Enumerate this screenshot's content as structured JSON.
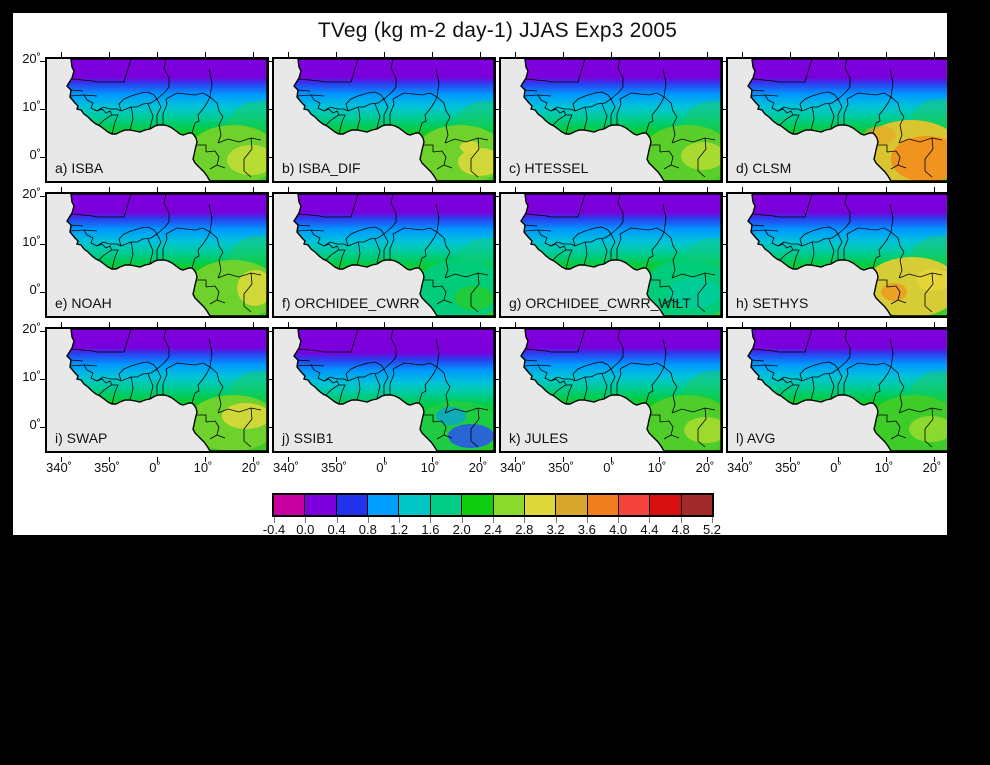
{
  "title": "TVeg (kg m-2 day-1) JJAS Exp3 2005",
  "axes": {
    "lat_ticks": [
      "20˚",
      "10˚",
      "0˚"
    ],
    "lon_ticks": [
      "340˚",
      "350˚",
      "0˚",
      "10˚",
      "20˚"
    ]
  },
  "colors": {
    "background": "#000000",
    "canvas": "#ffffff",
    "ocean": "#e8e8e8",
    "coast": "#000000",
    "border": "#000000"
  },
  "panels": [
    {
      "id": "a",
      "label": "a) ISBA",
      "stops": [
        [
          0,
          "#8000DF"
        ],
        [
          0.15,
          "#7A00DB"
        ],
        [
          0.2,
          "#2C3CEE"
        ],
        [
          0.29,
          "#0098FF"
        ],
        [
          0.39,
          "#00C3D8"
        ],
        [
          0.47,
          "#00CCA0"
        ],
        [
          0.55,
          "#00CC5A"
        ],
        [
          0.63,
          "#14CC14"
        ],
        [
          0.8,
          "#27CC1E"
        ],
        [
          1,
          "#3FCC28"
        ]
      ],
      "blobs": [
        [
          213,
          64,
          30,
          22,
          "#1ECC55",
          0.45
        ],
        [
          186,
          96,
          46,
          30,
          "#6FD12C",
          1
        ],
        [
          204,
          101,
          24,
          15,
          "#B9DC35",
          1
        ]
      ]
    },
    {
      "id": "b",
      "label": "b) ISBA_DIF",
      "stops": [
        [
          0,
          "#8000DF"
        ],
        [
          0.15,
          "#7A00DB"
        ],
        [
          0.2,
          "#2C3CEE"
        ],
        [
          0.29,
          "#0098FF"
        ],
        [
          0.39,
          "#00C3D8"
        ],
        [
          0.47,
          "#00CCA0"
        ],
        [
          0.55,
          "#00CC5A"
        ],
        [
          0.63,
          "#14CC14"
        ],
        [
          0.8,
          "#27CC1E"
        ],
        [
          1,
          "#3FCC28"
        ]
      ],
      "blobs": [
        [
          213,
          64,
          30,
          22,
          "#1ECC55",
          0.45
        ],
        [
          186,
          96,
          46,
          30,
          "#6FD12C",
          1
        ],
        [
          206,
          103,
          22,
          14,
          "#CFD838",
          1
        ],
        [
          196,
          88,
          10,
          6,
          "#DED73A",
          0.9
        ]
      ]
    },
    {
      "id": "c",
      "label": "c) HTESSEL",
      "stops": [
        [
          0,
          "#8000DF"
        ],
        [
          0.15,
          "#7A00DB"
        ],
        [
          0.2,
          "#2C3CEE"
        ],
        [
          0.29,
          "#0098FF"
        ],
        [
          0.39,
          "#00C3D8"
        ],
        [
          0.47,
          "#00CCA0"
        ],
        [
          0.55,
          "#00CC5A"
        ],
        [
          0.63,
          "#14CC14"
        ],
        [
          0.8,
          "#27CC1E"
        ],
        [
          1,
          "#3FCC28"
        ]
      ],
      "blobs": [
        [
          213,
          64,
          30,
          22,
          "#1ECC55",
          0.45
        ],
        [
          186,
          96,
          46,
          30,
          "#5ACF2C",
          1
        ],
        [
          202,
          97,
          22,
          14,
          "#A8DA31",
          1
        ]
      ]
    },
    {
      "id": "d",
      "label": "d) CLSM",
      "stops": [
        [
          0,
          "#8000DF"
        ],
        [
          0.15,
          "#7A00DB"
        ],
        [
          0.2,
          "#2C3CEE"
        ],
        [
          0.29,
          "#0098FF"
        ],
        [
          0.39,
          "#00C3D8"
        ],
        [
          0.47,
          "#00CCA0"
        ],
        [
          0.55,
          "#00CC5A"
        ],
        [
          0.63,
          "#14CC14"
        ],
        [
          0.8,
          "#27CC1E"
        ],
        [
          1,
          "#3FCC28"
        ]
      ],
      "blobs": [
        [
          213,
          62,
          30,
          22,
          "#1ECC55",
          0.45
        ],
        [
          183,
          94,
          52,
          33,
          "#D9C52F",
          1
        ],
        [
          199,
          100,
          36,
          23,
          "#F0931F",
          1
        ],
        [
          152,
          76,
          16,
          9,
          "#E8A428",
          0.6
        ]
      ]
    },
    {
      "id": "e",
      "label": "e) NOAH",
      "stops": [
        [
          0,
          "#8000DF"
        ],
        [
          0.15,
          "#7A00DB"
        ],
        [
          0.2,
          "#2C3CEE"
        ],
        [
          0.29,
          "#0098FF"
        ],
        [
          0.39,
          "#00C3D8"
        ],
        [
          0.47,
          "#00CCA0"
        ],
        [
          0.55,
          "#00CC5A"
        ],
        [
          0.63,
          "#14CC14"
        ],
        [
          0.8,
          "#27CC1E"
        ],
        [
          1,
          "#3FCC28"
        ]
      ],
      "blobs": [
        [
          213,
          64,
          30,
          22,
          "#1ECC55",
          0.45
        ],
        [
          186,
          96,
          46,
          30,
          "#6FD12C",
          1
        ],
        [
          208,
          94,
          18,
          18,
          "#CFD838",
          1
        ]
      ]
    },
    {
      "id": "f",
      "label": "f) ORCHIDEE_CWRR",
      "stops": [
        [
          0,
          "#8000DF"
        ],
        [
          0.15,
          "#7A00DB"
        ],
        [
          0.2,
          "#2C3CEE"
        ],
        [
          0.29,
          "#0098FF"
        ],
        [
          0.39,
          "#00C3D8"
        ],
        [
          0.47,
          "#00CCA0"
        ],
        [
          0.55,
          "#00CC5A"
        ],
        [
          0.63,
          "#14CC14"
        ],
        [
          0.8,
          "#27CC1E"
        ],
        [
          1,
          "#3FCC28"
        ]
      ],
      "blobs": [
        [
          213,
          64,
          28,
          20,
          "#10CC80",
          0.5
        ],
        [
          186,
          96,
          46,
          30,
          "#00CC7A",
          1
        ],
        [
          200,
          104,
          20,
          12,
          "#1ECC3C",
          1
        ]
      ]
    },
    {
      "id": "g",
      "label": "g) ORCHIDEE_CWRR_WILT",
      "stops": [
        [
          0,
          "#8000DF"
        ],
        [
          0.15,
          "#7A00DB"
        ],
        [
          0.2,
          "#2C3CEE"
        ],
        [
          0.29,
          "#0098FF"
        ],
        [
          0.39,
          "#00C3D8"
        ],
        [
          0.47,
          "#00CCA0"
        ],
        [
          0.55,
          "#00CC5A"
        ],
        [
          0.63,
          "#14CC14"
        ],
        [
          0.8,
          "#27CC1E"
        ],
        [
          1,
          "#3FCC28"
        ]
      ],
      "blobs": [
        [
          213,
          64,
          28,
          20,
          "#10CC80",
          0.5
        ],
        [
          186,
          96,
          46,
          30,
          "#00CC7A",
          1
        ],
        [
          193,
          99,
          26,
          15,
          "#00CC9A",
          1
        ]
      ]
    },
    {
      "id": "h",
      "label": "h) SETHYS",
      "stops": [
        [
          0,
          "#8000DF"
        ],
        [
          0.15,
          "#7A00DB"
        ],
        [
          0.2,
          "#2C3CEE"
        ],
        [
          0.29,
          "#0098FF"
        ],
        [
          0.39,
          "#00C3D8"
        ],
        [
          0.47,
          "#00CCA0"
        ],
        [
          0.55,
          "#00CC5A"
        ],
        [
          0.63,
          "#14CC14"
        ],
        [
          0.8,
          "#27CC1E"
        ],
        [
          1,
          "#3FCC28"
        ]
      ],
      "blobs": [
        [
          213,
          64,
          30,
          22,
          "#1ECC55",
          0.45
        ],
        [
          184,
          93,
          48,
          30,
          "#D6CD36",
          1
        ],
        [
          166,
          98,
          13,
          9,
          "#F0931F",
          0.75
        ],
        [
          206,
          86,
          18,
          11,
          "#E4D438",
          1
        ]
      ]
    },
    {
      "id": "i",
      "label": "i) SWAP",
      "stops": [
        [
          0,
          "#8000DF"
        ],
        [
          0.15,
          "#7A00DB"
        ],
        [
          0.2,
          "#2C3CEE"
        ],
        [
          0.29,
          "#0098FF"
        ],
        [
          0.39,
          "#00C3D8"
        ],
        [
          0.47,
          "#00CCA0"
        ],
        [
          0.55,
          "#00CC5A"
        ],
        [
          0.63,
          "#14CC14"
        ],
        [
          0.8,
          "#27CC1E"
        ],
        [
          1,
          "#3FCC28"
        ]
      ],
      "blobs": [
        [
          213,
          64,
          30,
          22,
          "#1ECC55",
          0.45
        ],
        [
          186,
          94,
          46,
          28,
          "#6FD12C",
          1
        ],
        [
          199,
          87,
          24,
          13,
          "#CFD838",
          1
        ]
      ]
    },
    {
      "id": "j",
      "label": "j) SSIB1",
      "stops": [
        [
          0,
          "#8000DF"
        ],
        [
          0.19,
          "#7A00DB"
        ],
        [
          0.25,
          "#2C3CEE"
        ],
        [
          0.34,
          "#0098FF"
        ],
        [
          0.44,
          "#00C3D8"
        ],
        [
          0.52,
          "#00CCA0"
        ],
        [
          0.6,
          "#00CC5A"
        ],
        [
          0.7,
          "#14CC14"
        ],
        [
          1,
          "#2ACC20"
        ]
      ],
      "blobs": [
        [
          184,
          98,
          42,
          26,
          "#1ECC44",
          1
        ],
        [
          197,
          107,
          23,
          12,
          "#2C52EE",
          0.85
        ],
        [
          177,
          87,
          15,
          9,
          "#0098FF",
          0.6
        ]
      ]
    },
    {
      "id": "k",
      "label": "k) JULES",
      "stops": [
        [
          0,
          "#8000DF"
        ],
        [
          0.15,
          "#7A00DB"
        ],
        [
          0.2,
          "#2C3CEE"
        ],
        [
          0.29,
          "#0098FF"
        ],
        [
          0.39,
          "#00C3D8"
        ],
        [
          0.47,
          "#00CCA0"
        ],
        [
          0.55,
          "#00CC5A"
        ],
        [
          0.63,
          "#14CC14"
        ],
        [
          0.8,
          "#27CC1E"
        ],
        [
          1,
          "#3FCC28"
        ]
      ],
      "blobs": [
        [
          213,
          64,
          30,
          22,
          "#1ECC55",
          0.45
        ],
        [
          186,
          96,
          46,
          30,
          "#4FCE2B",
          1
        ],
        [
          205,
          101,
          22,
          13,
          "#9ED92E",
          1
        ]
      ]
    },
    {
      "id": "l",
      "label": "l) AVG",
      "stops": [
        [
          0,
          "#8000DF"
        ],
        [
          0.15,
          "#7A00DB"
        ],
        [
          0.2,
          "#2C3CEE"
        ],
        [
          0.29,
          "#0098FF"
        ],
        [
          0.39,
          "#00C3D8"
        ],
        [
          0.47,
          "#00CCA0"
        ],
        [
          0.55,
          "#00CC5A"
        ],
        [
          0.63,
          "#14CC14"
        ],
        [
          0.8,
          "#27CC1E"
        ],
        [
          1,
          "#3FCC28"
        ]
      ],
      "blobs": [
        [
          213,
          64,
          30,
          22,
          "#1ECC55",
          0.45
        ],
        [
          186,
          96,
          46,
          30,
          "#3ECD28",
          1
        ],
        [
          203,
          100,
          22,
          13,
          "#8CD92E",
          1
        ]
      ]
    }
  ],
  "colorbar": {
    "labels": [
      "-0.4",
      "0.0",
      "0.4",
      "0.8",
      "1.2",
      "1.6",
      "2.0",
      "2.4",
      "2.8",
      "3.2",
      "3.6",
      "4.0",
      "4.4",
      "4.8",
      "5.2"
    ],
    "colors": [
      "#C800A0",
      "#7D00DF",
      "#2233EE",
      "#009FFF",
      "#00C6C6",
      "#00CC85",
      "#0FCC0F",
      "#8CD92E",
      "#DED73A",
      "#D8A72E",
      "#EF7E1E",
      "#F3433A",
      "#D70F0F",
      "#A22A2A"
    ]
  },
  "chart_data": {
    "type": "heatmap",
    "subtype": "multi-panel geographic filled-contour maps (West Africa)",
    "title": "TVeg (kg m-2 day-1) JJAS Exp3 2005",
    "variable": "TVeg (vegetation transpiration)",
    "units": "kg m-2 day-1",
    "season": "JJAS",
    "experiment": "Exp3",
    "year": "2005",
    "grid": {
      "rows": 3,
      "cols": 4
    },
    "panel_labels": [
      "a) ISBA",
      "b) ISBA_DIF",
      "c) HTESSEL",
      "d) CLSM",
      "e) NOAH",
      "f) ORCHIDEE_CWRR",
      "g) ORCHIDEE_CWRR_WILT",
      "h) SETHYS",
      "i) SWAP",
      "j) SSIB1",
      "k) JULES",
      "l) AVG"
    ],
    "x_tick_labels_deg_lon": [
      340,
      350,
      0,
      10,
      20
    ],
    "y_tick_labels_deg_lat": [
      20,
      10,
      0
    ],
    "map_domain": {
      "lon_range": [
        -21.5,
        24.5
      ],
      "lat_range": [
        -5.5,
        20.5
      ]
    },
    "colorbar_bin_edges": [
      -0.4,
      0.0,
      0.4,
      0.8,
      1.2,
      1.6,
      2.0,
      2.4,
      2.8,
      3.2,
      3.6,
      4.0,
      4.4,
      4.8,
      5.2
    ],
    "colorbar_colors": [
      "#C800A0",
      "#7D00DF",
      "#2233EE",
      "#009FFF",
      "#00C6C6",
      "#00CC85",
      "#0FCC0F",
      "#8CD92E",
      "#DED73A",
      "#D8A72E",
      "#EF7E1E",
      "#F3433A",
      "#D70F0F",
      "#A22A2A"
    ],
    "legend_position": "bottom-center horizontal colorbar",
    "grid_lines": "off",
    "pattern_summary": "All panels: values near 0-0.4 (purple) over the Sahara in the north, increasing southward through blue (0.4-1.2), cyan (1.2-2.0) in the Sahel, green (2.0-2.4) near the Guinea coast, and yellow-green/yellow (2.4-3.2) over the Congo-basin southeast corner. CLSM shows the highest southeast values (orange, 3.6-4.0); SETHYS and SWAP show broad yellow (2.8-3.2); SSIB1 is lowest with blue patches (0.8-1.2) in the southeast; ocean/no-data region is light gray."
  }
}
